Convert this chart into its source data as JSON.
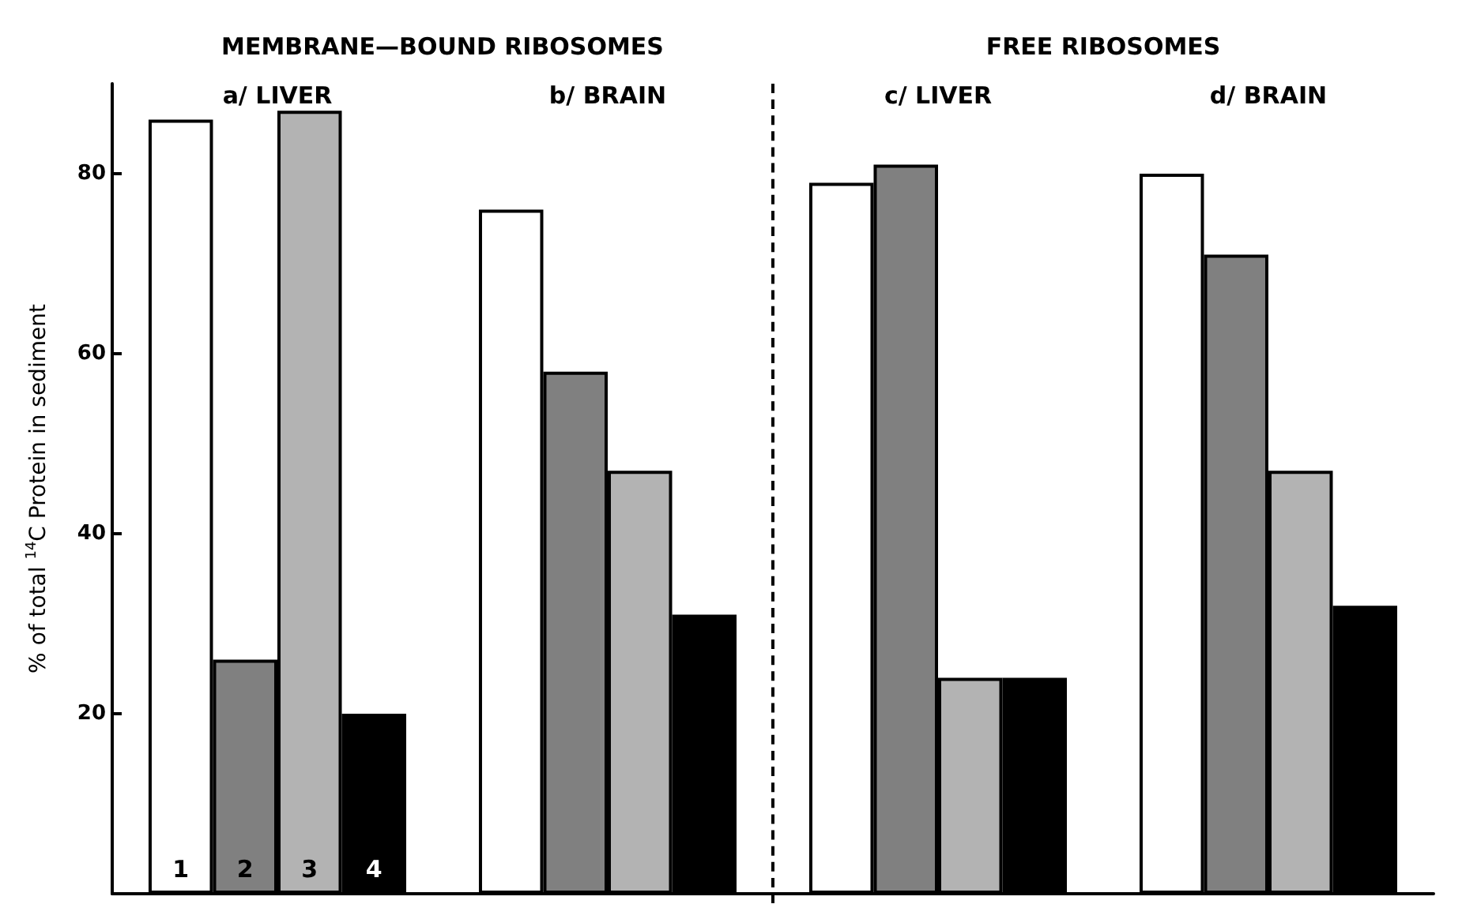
{
  "chart_data": {
    "type": "bar",
    "ylabel": "% of total $^{14}$C Protein in sediment",
    "categories": [
      "a/ LIVER",
      "b/ BRAIN",
      "c/ LIVER",
      "d/ BRAIN"
    ],
    "series": [
      {
        "name": "1",
        "color": "#ffffff",
        "values": [
          86,
          76,
          79,
          80
        ]
      },
      {
        "name": "2",
        "color": "#808080",
        "values": [
          26,
          58,
          81,
          71
        ]
      },
      {
        "name": "3",
        "color": "#b3b3b3",
        "values": [
          87,
          47,
          24,
          47
        ]
      },
      {
        "name": "4",
        "color": "#000000",
        "values": [
          20,
          31,
          24,
          32
        ]
      }
    ],
    "annotations": [
      "MEMBRANE—BOUND RIBOSOMES",
      "FREE RIBOSOMES"
    ],
    "ylim": [
      0,
      90
    ],
    "yticks": [
      20,
      40,
      60,
      80
    ],
    "grid": false,
    "legend": false
  }
}
